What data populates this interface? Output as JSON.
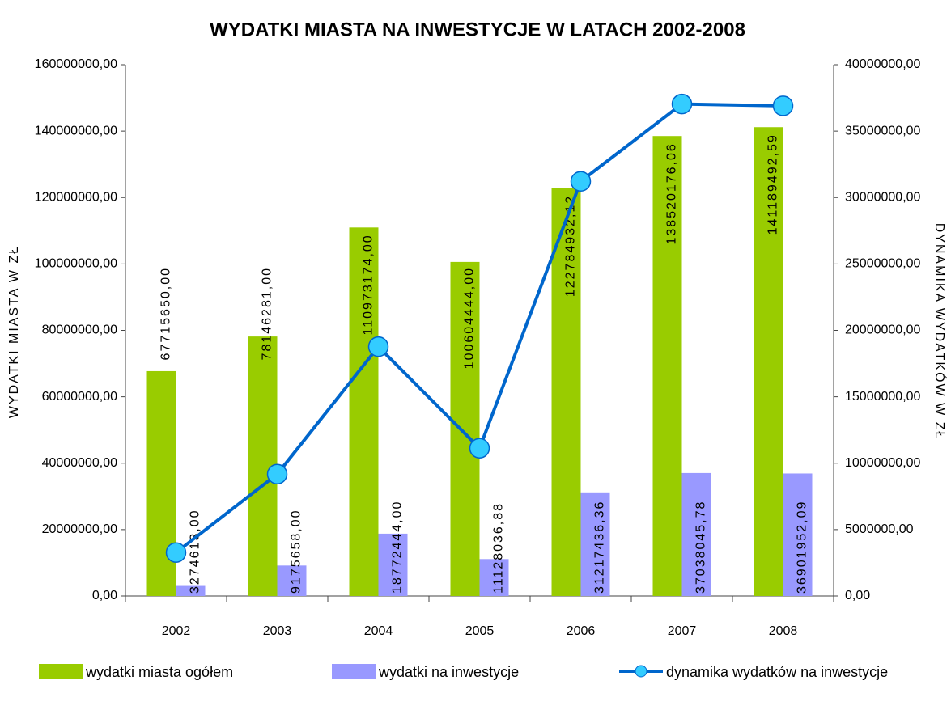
{
  "chart_data": {
    "type": "bar_line",
    "title": "WYDATKI MIASTA NA INWESTYCJE W LATACH 2002-2008",
    "y_label": "WYDATKI MIASTA W  ZŁ",
    "y2_label": "DYNAMIKA WYDATKÓW  W  ZŁ",
    "categories": [
      "2002",
      "2003",
      "2004",
      "2005",
      "2006",
      "2007",
      "2008"
    ],
    "series": [
      {
        "name": "wydatki miasta ogółem",
        "type": "bar",
        "color": "#99cc00",
        "values": [
          67715650.0,
          78146281.0,
          110973174.0,
          100604444.0,
          122784932.12,
          138520176.06,
          141189492.59
        ],
        "value_labels": [
          "67715650,00",
          "78146281,00",
          "110973174,00",
          "100604444,00",
          "122784932,12",
          "138520176,06",
          "141189492,59"
        ]
      },
      {
        "name": "wydatki na inwestycje",
        "type": "bar",
        "color": "#9999ff",
        "values": [
          3274613.0,
          9175658.0,
          18772444.0,
          11128036.88,
          31217436.36,
          37038045.78,
          36901952.09
        ],
        "value_labels": [
          "3274613,00",
          "9175658,00",
          "18772444,00",
          "11128036,88",
          "31217436,36",
          "37038045,78",
          "36901952,09"
        ]
      },
      {
        "name": "dynamika wydatków na inwestycje",
        "type": "line",
        "axis": "y2",
        "color": "#0066cc",
        "marker_color": "#33ccff",
        "values": [
          3274613.0,
          9175658.0,
          18772444.0,
          11128036.88,
          31217436.36,
          37038045.78,
          36901952.09
        ]
      }
    ],
    "ylim": [
      0,
      160000000
    ],
    "yticks": [
      {
        "value": 0,
        "label": "0,00"
      },
      {
        "value": 20000000,
        "label": "20000000,00"
      },
      {
        "value": 40000000,
        "label": "40000000,00"
      },
      {
        "value": 60000000,
        "label": "60000000,00"
      },
      {
        "value": 80000000,
        "label": "80000000,00"
      },
      {
        "value": 100000000,
        "label": "100000000,00"
      },
      {
        "value": 120000000,
        "label": "120000000,00"
      },
      {
        "value": 140000000,
        "label": "140000000,00"
      },
      {
        "value": 160000000,
        "label": "160000000,00"
      }
    ],
    "y2lim": [
      0,
      40000000
    ],
    "y2ticks": [
      {
        "value": 0,
        "label": "0,00"
      },
      {
        "value": 5000000,
        "label": "5000000,00"
      },
      {
        "value": 10000000,
        "label": "10000000,00"
      },
      {
        "value": 15000000,
        "label": "15000000,00"
      },
      {
        "value": 20000000,
        "label": "20000000,00"
      },
      {
        "value": 25000000,
        "label": "25000000,00"
      },
      {
        "value": 30000000,
        "label": "30000000,00"
      },
      {
        "value": 35000000,
        "label": "35000000,00"
      },
      {
        "value": 40000000,
        "label": "40000000,00"
      }
    ],
    "grid": false,
    "legend": "bottom"
  }
}
